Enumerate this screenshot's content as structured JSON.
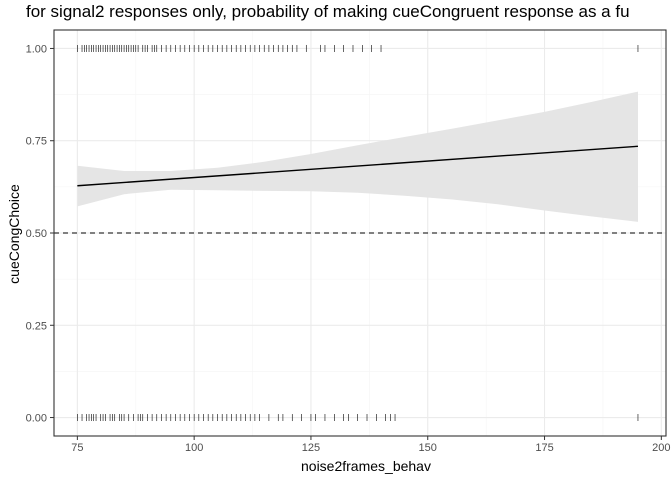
{
  "chart_data": {
    "type": "scatter",
    "title": "for signal2 responses only, probability of making cueCongruent response as a fu",
    "xlabel": "noise2frames_behav",
    "ylabel": "cueCongChoice",
    "xlim": [
      70,
      201
    ],
    "ylim": [
      -0.05,
      1.05
    ],
    "x_ticks": [
      75,
      100,
      125,
      150,
      175,
      200
    ],
    "x_tick_labels": [
      "75",
      "100",
      "125",
      "150",
      "175",
      "200"
    ],
    "y_ticks": [
      0,
      0.25,
      0.5,
      0.75,
      1
    ],
    "y_tick_labels": [
      "0.00",
      "0.25",
      "0.50",
      "0.75",
      "1.00"
    ],
    "grid": true,
    "legend": "none",
    "rug_y1_x": [
      75,
      76,
      76.5,
      77,
      77.5,
      78,
      78.5,
      79,
      79.5,
      80,
      80.5,
      81,
      81.5,
      82,
      82.5,
      83,
      83.5,
      84,
      84.5,
      85,
      85.5,
      86,
      86.5,
      87,
      87.5,
      88,
      89,
      89.5,
      90,
      91,
      91.5,
      92,
      93,
      94,
      95,
      96,
      97,
      98,
      99,
      100,
      101,
      102,
      103,
      104,
      105,
      106,
      107,
      108,
      109,
      110,
      111,
      112,
      113,
      114,
      115,
      116,
      117,
      118,
      119,
      120,
      121,
      122,
      124,
      127,
      128,
      130,
      132,
      134,
      136,
      138,
      140,
      195
    ],
    "rug_y0_x": [
      75,
      76,
      77,
      77.5,
      78,
      78.5,
      79,
      80,
      80.5,
      81,
      82,
      82.5,
      83,
      84,
      84.5,
      85,
      86,
      87,
      88,
      88.5,
      89,
      90,
      91,
      92,
      93,
      94,
      95,
      96,
      97,
      98,
      99,
      100,
      101,
      102,
      103,
      104,
      105,
      106,
      107,
      108,
      109,
      110,
      111,
      112,
      113,
      114,
      116,
      118,
      119,
      121,
      123,
      125,
      126,
      128,
      130,
      132,
      133,
      135,
      137,
      139,
      141,
      142,
      143,
      195
    ],
    "fit_line": {
      "x": [
        75,
        195
      ],
      "y": [
        0.628,
        0.735
      ]
    },
    "confidence_band": {
      "x": [
        75,
        85,
        95,
        105,
        115,
        125,
        135,
        145,
        155,
        165,
        175,
        185,
        195
      ],
      "upper": [
        0.682,
        0.668,
        0.668,
        0.677,
        0.693,
        0.714,
        0.738,
        0.76,
        0.782,
        0.805,
        0.828,
        0.855,
        0.883
      ],
      "lower": [
        0.572,
        0.605,
        0.617,
        0.616,
        0.614,
        0.613,
        0.609,
        0.601,
        0.591,
        0.578,
        0.561,
        0.545,
        0.53
      ]
    },
    "reference_line": {
      "y": 0.5,
      "style": "dashed"
    },
    "colors": {
      "background": "#ffffff",
      "panel_border": "#333333",
      "grid_major": "#ebebeb",
      "grid_minor": "#f5f5f5",
      "band": "#e5e5e5",
      "line": "#000000",
      "rug": "#000000"
    }
  }
}
